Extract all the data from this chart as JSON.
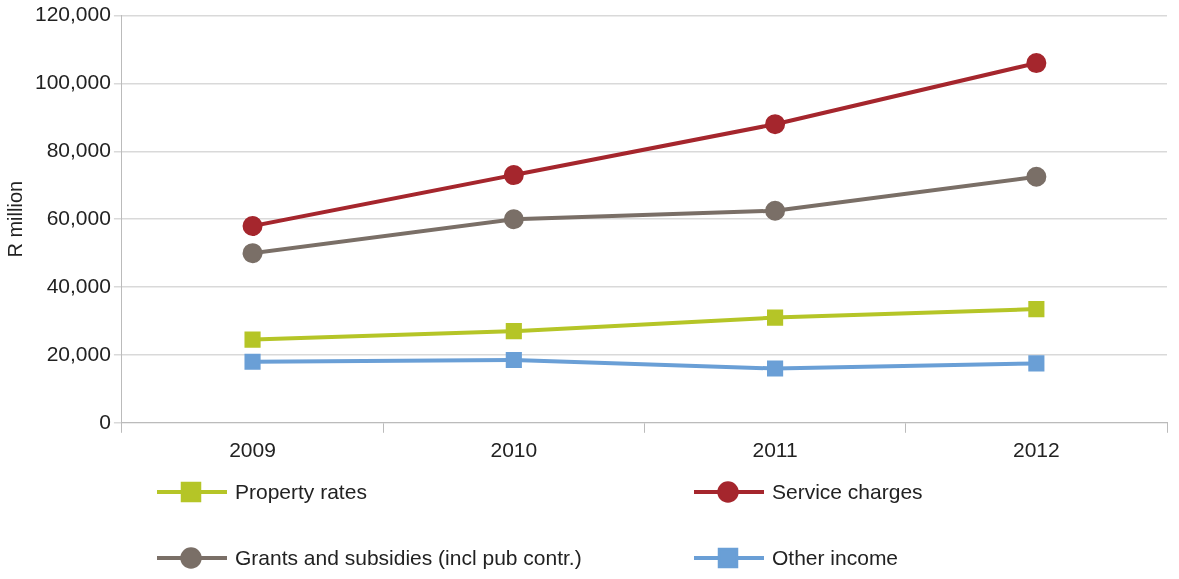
{
  "chart_data": {
    "type": "line",
    "ylabel": "R million",
    "categories": [
      "2009",
      "2010",
      "2011",
      "2012"
    ],
    "series": [
      {
        "name": "Property rates",
        "color": "#b5c527",
        "values": [
          24500,
          27000,
          31000,
          33500
        ],
        "marker": "square"
      },
      {
        "name": "Service charges",
        "color": "#a5262d",
        "values": [
          58000,
          73000,
          88000,
          106000
        ],
        "marker": "circle"
      },
      {
        "name": "Grants and subsidies (incl pub contr.)",
        "color": "#7a6f67",
        "values": [
          50000,
          60000,
          62500,
          72500
        ],
        "marker": "circle"
      },
      {
        "name": "Other income",
        "color": "#6a9fd6",
        "values": [
          18000,
          18500,
          16000,
          17500
        ],
        "marker": "square"
      }
    ],
    "ylim": [
      0,
      120000
    ],
    "yticks": [
      0,
      {
        "value": 20000,
        "label": "20,000"
      },
      {
        "value": 40000,
        "label": "40,000"
      },
      {
        "value": 60000,
        "label": "60,000"
      },
      {
        "value": 80000,
        "label": "80,000"
      },
      {
        "value": 100000,
        "label": "100,000"
      },
      {
        "value": 120000,
        "label": "120,000"
      }
    ],
    "grid": "y",
    "legend": "bottom"
  }
}
